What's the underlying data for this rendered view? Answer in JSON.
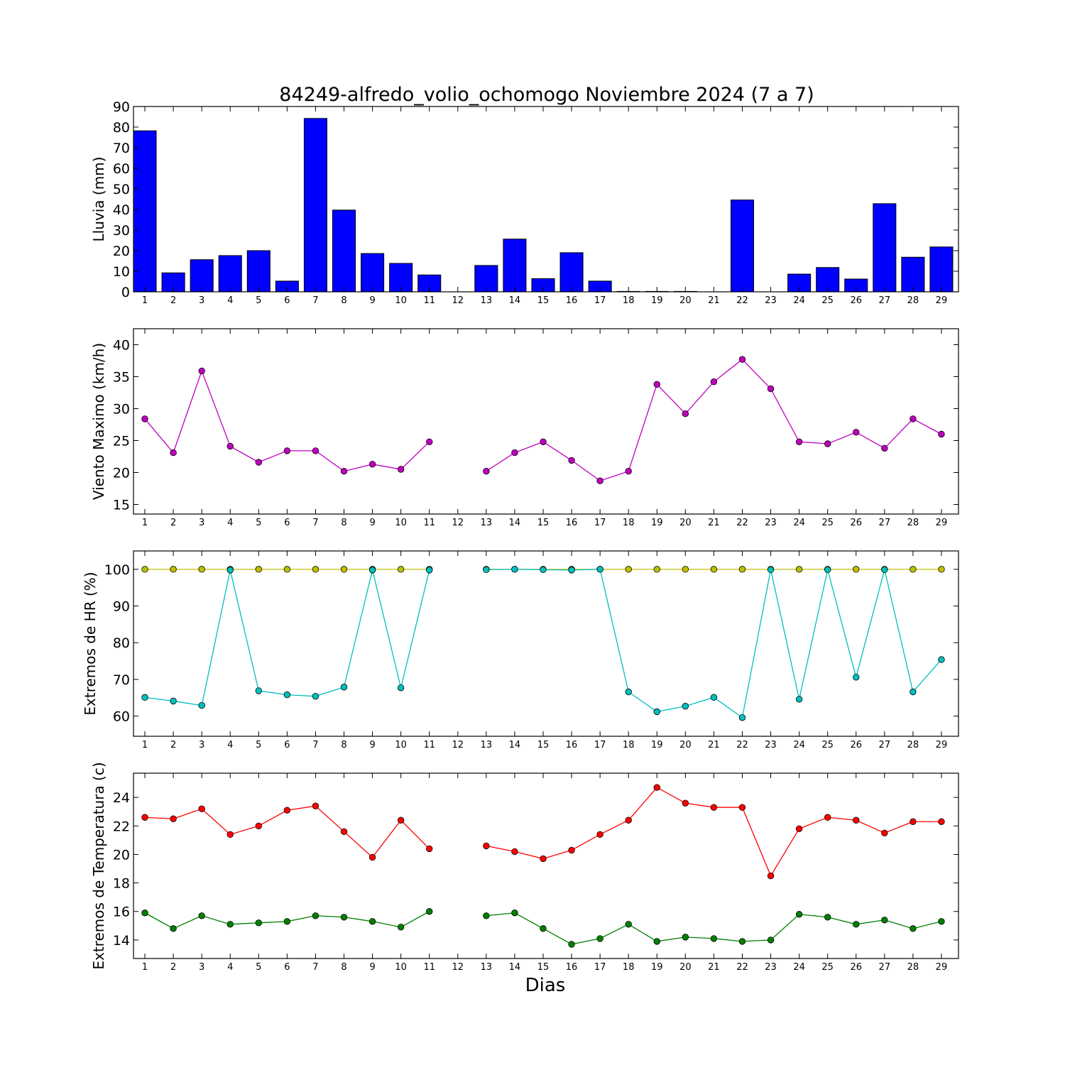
{
  "title": "84249-alfredo_volio_ochomogo Noviembre 2024  (7 a 7)",
  "xlabel": "Dias",
  "chart_data": [
    {
      "type": "bar",
      "ylabel": "Lluvia (mm)",
      "ylim": [
        0,
        90
      ],
      "yticks": [
        0,
        10,
        20,
        30,
        40,
        50,
        60,
        70,
        80,
        90
      ],
      "x": [
        1,
        2,
        3,
        4,
        5,
        6,
        7,
        8,
        9,
        10,
        11,
        12,
        13,
        14,
        15,
        16,
        17,
        18,
        19,
        20,
        21,
        22,
        23,
        24,
        25,
        26,
        27,
        28,
        29
      ],
      "series": [
        {
          "color": "#0000ff",
          "values": [
            78.2,
            9.2,
            15.6,
            17.6,
            20.0,
            5.2,
            84.2,
            39.7,
            18.6,
            13.8,
            8.2,
            null,
            12.8,
            25.6,
            6.4,
            19.0,
            5.2,
            0.2,
            0.2,
            0.2,
            0.0,
            44.6,
            0.0,
            8.6,
            11.8,
            6.2,
            42.8,
            16.8,
            21.8
          ]
        }
      ]
    },
    {
      "type": "line",
      "ylabel": "Viento Maximo (km/h)",
      "ylim": [
        13.5,
        42.5
      ],
      "yticks": [
        15,
        20,
        25,
        30,
        35,
        40
      ],
      "x": [
        1,
        2,
        3,
        4,
        5,
        6,
        7,
        8,
        9,
        10,
        11,
        12,
        13,
        14,
        15,
        16,
        17,
        18,
        19,
        20,
        21,
        22,
        23,
        24,
        25,
        26,
        27,
        28,
        29
      ],
      "series": [
        {
          "color": "#bf00bf",
          "values": [
            28.4,
            23.1,
            35.9,
            24.1,
            21.6,
            23.4,
            23.4,
            20.2,
            21.3,
            20.5,
            24.8,
            null,
            20.2,
            23.1,
            24.8,
            21.9,
            18.7,
            20.2,
            33.8,
            29.2,
            34.2,
            37.7,
            33.1,
            24.8,
            24.5,
            26.3,
            23.8,
            28.4,
            26.0
          ]
        }
      ]
    },
    {
      "type": "line",
      "ylabel": "Extremos de HR (%)",
      "ylim": [
        54.5,
        105
      ],
      "yticks": [
        60,
        70,
        80,
        90,
        100
      ],
      "x": [
        1,
        2,
        3,
        4,
        5,
        6,
        7,
        8,
        9,
        10,
        11,
        12,
        13,
        14,
        15,
        16,
        17,
        18,
        19,
        20,
        21,
        22,
        23,
        24,
        25,
        26,
        27,
        28,
        29
      ],
      "series": [
        {
          "color": "#bfbf00",
          "values": [
            100,
            100,
            100,
            100,
            100,
            100,
            100,
            100,
            100,
            100,
            100,
            null,
            100,
            100,
            100,
            100,
            100,
            100,
            100,
            100,
            100,
            100,
            100,
            100,
            100,
            100,
            100,
            100,
            100
          ]
        },
        {
          "color": "#00bfbf",
          "values": [
            65.1,
            64.1,
            62.9,
            99.8,
            66.9,
            65.8,
            65.4,
            67.9,
            99.8,
            67.7,
            99.8,
            null,
            99.9,
            100.0,
            99.9,
            99.8,
            100.0,
            66.6,
            61.2,
            62.7,
            65.1,
            59.6,
            99.9,
            64.6,
            99.9,
            70.6,
            99.9,
            66.6,
            75.4
          ]
        }
      ]
    },
    {
      "type": "line",
      "ylabel": "Extremos de Temperatura (c)",
      "ylim": [
        12.7,
        25.7
      ],
      "yticks": [
        14,
        16,
        18,
        20,
        22,
        24
      ],
      "x": [
        1,
        2,
        3,
        4,
        5,
        6,
        7,
        8,
        9,
        10,
        11,
        12,
        13,
        14,
        15,
        16,
        17,
        18,
        19,
        20,
        21,
        22,
        23,
        24,
        25,
        26,
        27,
        28,
        29
      ],
      "series": [
        {
          "color": "#ff0000",
          "values": [
            22.6,
            22.5,
            23.2,
            21.4,
            22.0,
            23.1,
            23.4,
            21.6,
            19.8,
            22.4,
            20.4,
            null,
            20.6,
            20.2,
            19.7,
            20.3,
            21.4,
            22.4,
            24.7,
            23.6,
            23.3,
            23.3,
            18.5,
            21.8,
            22.6,
            22.4,
            21.5,
            22.3,
            22.3
          ]
        },
        {
          "color": "#008000",
          "values": [
            15.9,
            14.8,
            15.7,
            15.1,
            15.2,
            15.3,
            15.7,
            15.6,
            15.3,
            14.9,
            16.0,
            null,
            15.7,
            15.9,
            14.8,
            13.7,
            14.1,
            15.1,
            13.9,
            14.2,
            14.1,
            13.9,
            14.0,
            15.8,
            15.6,
            15.1,
            15.4,
            14.8,
            15.3
          ]
        }
      ]
    }
  ]
}
